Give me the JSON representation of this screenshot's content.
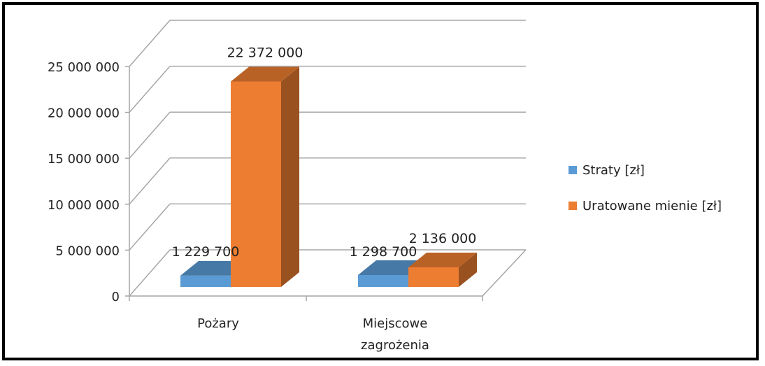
{
  "chart_data": {
    "type": "bar",
    "categories": [
      [
        "Pożary"
      ],
      [
        "Miejscowe",
        "zagrożenia"
      ]
    ],
    "series": [
      {
        "name": "Straty [zł]",
        "values": [
          1229700,
          1298700
        ],
        "labels": [
          "1 229 700",
          "1 298 700"
        ],
        "color": "#5b9bd5"
      },
      {
        "name": "Uratowane mienie [zł]",
        "values": [
          22372000,
          2136000
        ],
        "labels": [
          "22 372 000",
          "2 136 000"
        ],
        "color": "#ed7d31"
      }
    ],
    "yticks": [
      {
        "value": 0,
        "label": "0"
      },
      {
        "value": 5000000,
        "label": "5 000 000"
      },
      {
        "value": 10000000,
        "label": "10 000 000"
      },
      {
        "value": 15000000,
        "label": "15 000 000"
      },
      {
        "value": 20000000,
        "label": "20 000 000"
      },
      {
        "value": 25000000,
        "label": "25 000 000"
      }
    ],
    "ylim": [
      0,
      25000000
    ],
    "grid": true,
    "legend_position": "right",
    "style": "3d-clustered-column"
  }
}
